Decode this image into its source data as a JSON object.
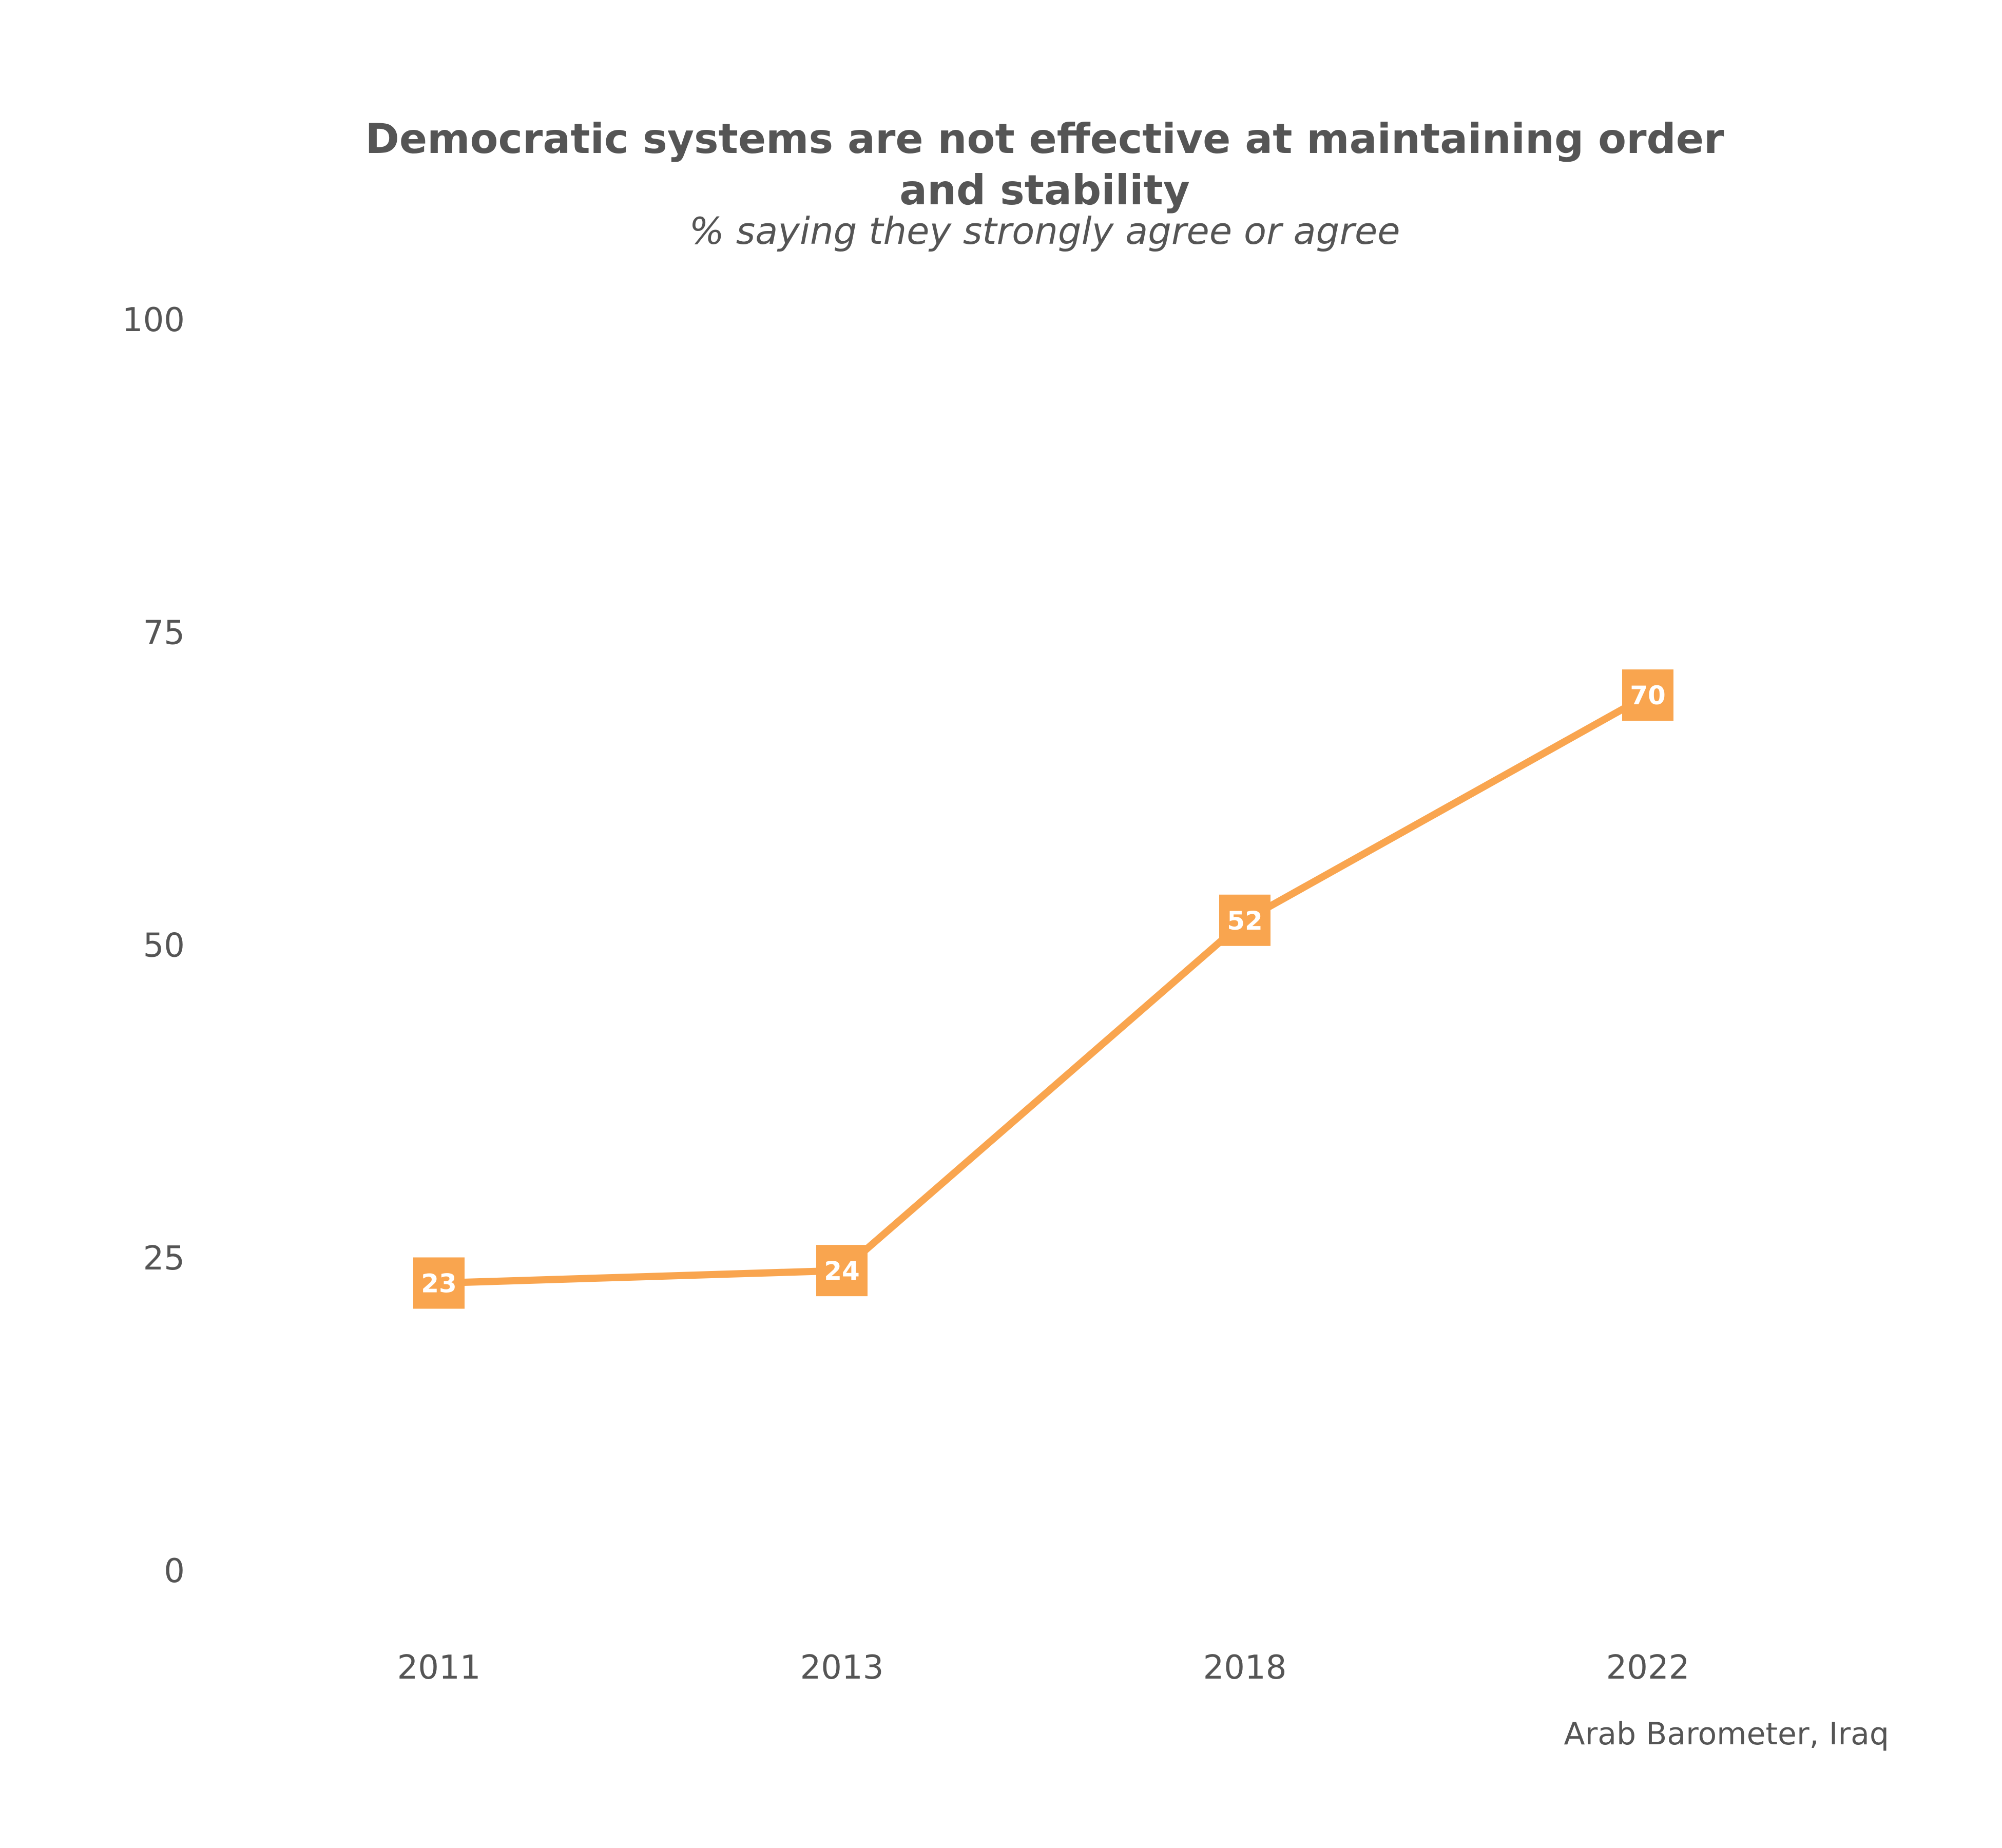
{
  "chart_data": {
    "type": "line",
    "title_lines": [
      "Democratic systems are not effective at maintaining order",
      "and stability"
    ],
    "subtitle": "% saying they strongly agree or agree",
    "caption": "Arab Barometer, Iraq",
    "x": [
      "2011",
      "2013",
      "2018",
      "2022"
    ],
    "series": [
      {
        "values": [
          23,
          24,
          52,
          70
        ],
        "color": "#F9A54F"
      }
    ],
    "y_ticks": [
      0,
      25,
      50,
      75,
      100
    ],
    "ylim": [
      0,
      100
    ],
    "grid": false,
    "legend": false
  }
}
